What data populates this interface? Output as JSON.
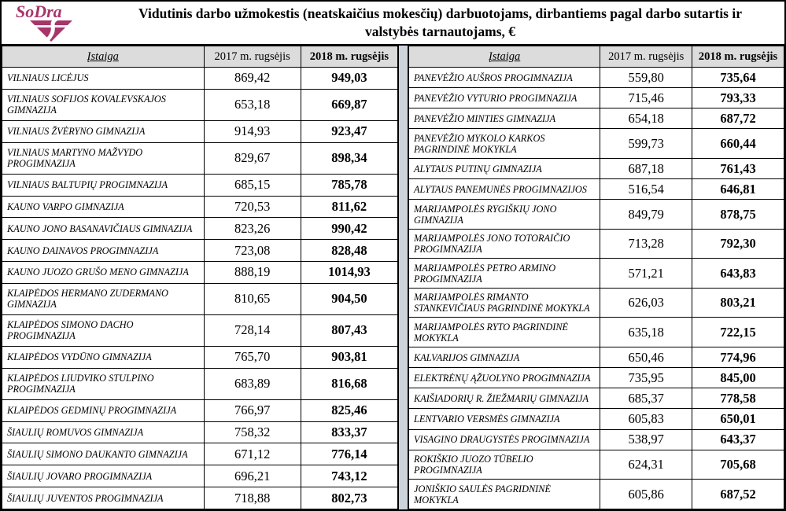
{
  "logo": {
    "text": "SoDra",
    "color": "#a6356b"
  },
  "title": "Vidutinis darbo užmokestis (neatskaičius mokesčių) darbuotojams, dirbantiems pagal darbo sutartis ir valstybės tarnautojams, €",
  "columns": {
    "institution": "Įstaiga",
    "y2017": "2017 m. rugsėjis",
    "y2018": "2018 m. rugsėjis"
  },
  "colors": {
    "logo": "#a6356b",
    "header_bg": "#dcdcdc",
    "separator_strip": "#ccd3db",
    "border": "#000000"
  },
  "tables": [
    {
      "name": "left",
      "rows": [
        [
          "VILNIAUS LICĖJUS",
          "869,42",
          "949,03"
        ],
        [
          "VILNIAUS SOFIJOS KOVALEVSKAJOS GIMNAZIJA",
          "653,18",
          "669,87"
        ],
        [
          "VILNIAUS ŽVĖRYNO GIMNAZIJA",
          "914,93",
          "923,47"
        ],
        [
          "VILNIAUS MARTYNO MAŽVYDO PROGIMNAZIJA",
          "829,67",
          "898,34"
        ],
        [
          "VILNIAUS BALTUPIŲ PROGIMNAZIJA",
          "685,15",
          "785,78"
        ],
        [
          "KAUNO VARPO GIMNAZIJA",
          "720,53",
          "811,62"
        ],
        [
          "KAUNO JONO BASANAVIČIAUS GIMNAZIJA",
          "823,26",
          "990,42"
        ],
        [
          "KAUNO DAINAVOS PROGIMNAZIJA",
          "723,08",
          "828,48"
        ],
        [
          "KAUNO JUOZO GRUŠO MENO GIMNAZIJA",
          "888,19",
          "1014,93"
        ],
        [
          "KLAIPĖDOS HERMANO ZUDERMANO GIMNAZIJA",
          "810,65",
          "904,50"
        ],
        [
          "KLAIPĖDOS SIMONO DACHO PROGIMNAZIJA",
          "728,14",
          "807,43"
        ],
        [
          "KLAIPĖDOS VYDŪNO GIMNAZIJA",
          "765,70",
          "903,81"
        ],
        [
          "KLAIPĖDOS LIUDVIKO STULPINO PROGIMNAZIJA",
          "683,89",
          "816,68"
        ],
        [
          "KLAIPĖDOS GEDMINŲ PROGIMNAZIJA",
          "766,97",
          "825,46"
        ],
        [
          "ŠIAULIŲ ROMUVOS GIMNAZIJA",
          "758,32",
          "833,37"
        ],
        [
          "ŠIAULIŲ SIMONO DAUKANTO GIMNAZIJA",
          "671,12",
          "776,14"
        ],
        [
          "ŠIAULIŲ JOVARO PROGIMNAZIJA",
          "696,21",
          "743,12"
        ],
        [
          "ŠIAULIŲ JUVENTOS PROGIMNAZIJA",
          "718,88",
          "802,73"
        ]
      ]
    },
    {
      "name": "right",
      "rows": [
        [
          "PANEVĖŽIO AUŠROS PROGIMNAZIJA",
          "559,80",
          "735,64"
        ],
        [
          "PANEVĖŽIO VYTURIO PROGIMNAZIJA",
          "715,46",
          "793,33"
        ],
        [
          "PANEVĖŽIO MINTIES GIMNAZIJA",
          "654,18",
          "687,72"
        ],
        [
          "PANEVĖŽIO MYKOLO KARKOS PAGRINDINĖ MOKYKLA",
          "599,73",
          "660,44"
        ],
        [
          "ALYTAUS PUTINŲ GIMNAZIJA",
          "687,18",
          "761,43"
        ],
        [
          "ALYTAUS PANEMUNĖS PROGIMNAZIJOS",
          "516,54",
          "646,81"
        ],
        [
          "MARIJAMPOLĖS RYGIŠKIŲ JONO GIMNAZIJA",
          "849,79",
          "878,75"
        ],
        [
          "MARIJAMPOLĖS JONO TOTORAIČIO PROGIMNAZIJA",
          "713,28",
          "792,30"
        ],
        [
          "MARIJAMPOLĖS PETRO ARMINO PROGIMNAZIJA",
          "571,21",
          "643,83"
        ],
        [
          "MARIJAMPOLĖS RIMANTO STANKEVIČIAUS PAGRINDINĖ MOKYKLA",
          "626,03",
          "803,21"
        ],
        [
          "MARIJAMPOLĖS RYTO PAGRINDINĖ MOKYKLA",
          "635,18",
          "722,15"
        ],
        [
          "KALVARIJOS GIMNAZIJA",
          "650,46",
          "774,96"
        ],
        [
          "ELEKTRĖNŲ ĄŽUOLYNO PROGIMNAZIJA",
          "735,95",
          "845,00"
        ],
        [
          "KAIŠIADORIŲ R. ŽIEŽMARIŲ GIMNAZIJA",
          "685,37",
          "778,58"
        ],
        [
          "LENTVARIO VERSMĖS GIMNAZIJA",
          "605,83",
          "650,01"
        ],
        [
          "VISAGINO DRAUGYSTĖS PROGIMNAZIJA",
          "538,97",
          "643,37"
        ],
        [
          "ROKIŠKIO JUOZO TŪBELIO PROGIMNAZIJA",
          "624,31",
          "705,68"
        ],
        [
          "JONIŠKIO SAULĖS PAGRIDNINĖ MOKYKLA",
          "605,86",
          "687,52"
        ]
      ]
    }
  ]
}
